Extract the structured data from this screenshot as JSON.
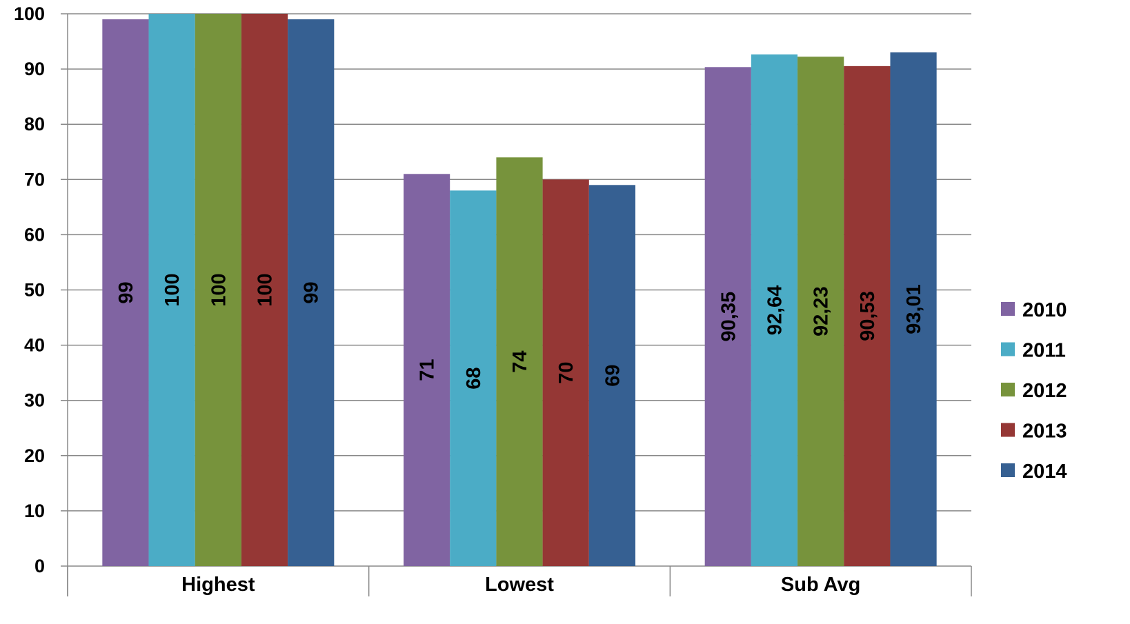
{
  "chart_data": {
    "type": "bar",
    "categories": [
      "Highest",
      "Lowest",
      "Sub Avg"
    ],
    "series": [
      {
        "name": "2010",
        "color": "#8064A2",
        "values": [
          99,
          71,
          90.35
        ],
        "labels": [
          "99",
          "71",
          "90,35"
        ]
      },
      {
        "name": "2011",
        "color": "#4BACC6",
        "values": [
          100,
          68,
          92.64
        ],
        "labels": [
          "100",
          "68",
          "92,64"
        ]
      },
      {
        "name": "2012",
        "color": "#77933C",
        "values": [
          100,
          74,
          92.23
        ],
        "labels": [
          "100",
          "74",
          "92,23"
        ]
      },
      {
        "name": "2013",
        "color": "#953735",
        "values": [
          100,
          70,
          90.53
        ],
        "labels": [
          "100",
          "70",
          "90,53"
        ]
      },
      {
        "name": "2014",
        "color": "#366092",
        "values": [
          99,
          69,
          93.01
        ],
        "labels": [
          "99",
          "69",
          "93,01"
        ]
      }
    ],
    "ylim": [
      0,
      100
    ],
    "yticks": [
      "0",
      "10",
      "20",
      "30",
      "40",
      "50",
      "60",
      "70",
      "80",
      "90",
      "100"
    ],
    "grid": true,
    "legend_position": "right",
    "title": "",
    "xlabel": "",
    "ylabel": ""
  }
}
